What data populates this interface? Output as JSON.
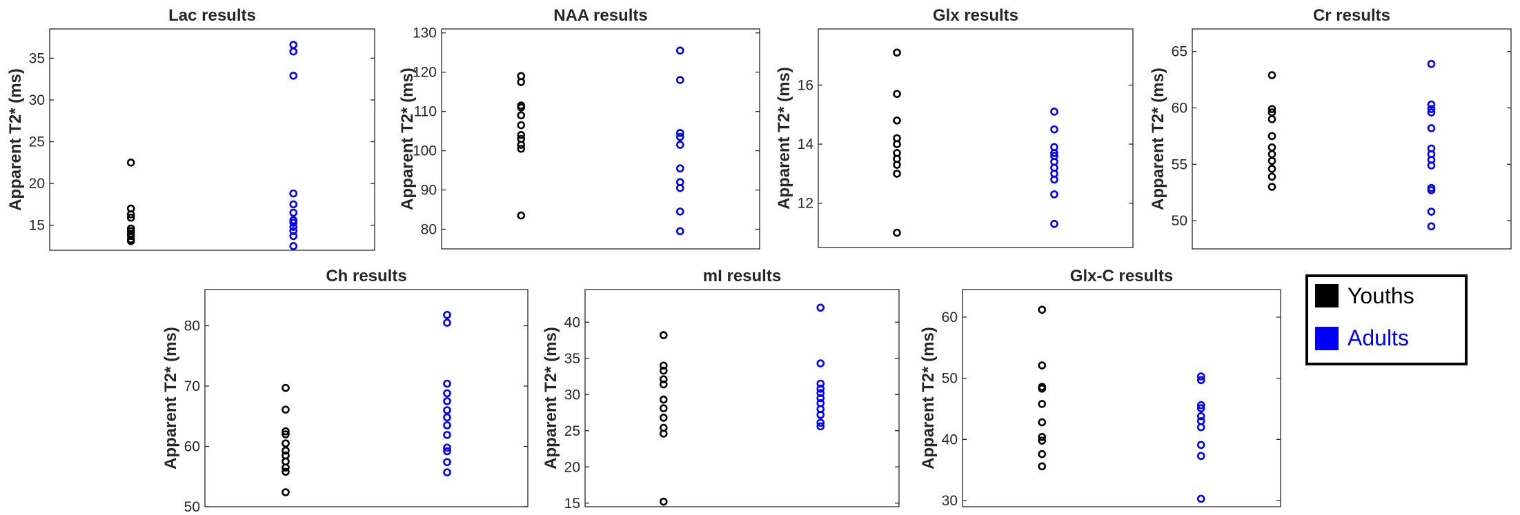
{
  "legend": {
    "entries": [
      {
        "label": "Youths",
        "color": "#000000"
      },
      {
        "label": "Adults",
        "color": "#0000ff"
      }
    ]
  },
  "chart_data": [
    {
      "type": "scatter",
      "title": "Lac results",
      "ylabel": "Apparent T2* (ms)",
      "ylim": [
        12,
        38.5
      ],
      "yticks": [
        15,
        20,
        25,
        30,
        35
      ],
      "series": [
        {
          "name": "Youths",
          "color": "#000000",
          "x": 1,
          "values": [
            22.5,
            17.0,
            16.3,
            15.9,
            14.6,
            14.3,
            14.0,
            13.7,
            13.3,
            13.1
          ]
        },
        {
          "name": "Adults",
          "color": "#0000ff",
          "x": 2,
          "values": [
            36.6,
            35.8,
            32.9,
            18.8,
            17.5,
            16.5,
            15.6,
            15.3,
            14.8,
            14.3,
            13.7,
            12.5
          ]
        }
      ]
    },
    {
      "type": "scatter",
      "title": "NAA results",
      "ylabel": "Apparent T2* (ms)",
      "ylim": [
        75,
        131
      ],
      "yticks": [
        80,
        90,
        100,
        110,
        120,
        130
      ],
      "series": [
        {
          "name": "Youths",
          "color": "#000000",
          "x": 1,
          "values": [
            119,
            117.5,
            111.5,
            111,
            109,
            106.5,
            104,
            103,
            101.5,
            100.5,
            83.5
          ]
        },
        {
          "name": "Adults",
          "color": "#0000ff",
          "x": 2,
          "values": [
            125.5,
            118,
            104.5,
            103.5,
            101.5,
            95.5,
            92,
            90.5,
            84.5,
            79.5
          ]
        }
      ]
    },
    {
      "type": "scatter",
      "title": "Glx results",
      "ylabel": "Apparent T2* (ms)",
      "ylim": [
        10.5,
        17.9
      ],
      "yticks": [
        12,
        14,
        16
      ],
      "series": [
        {
          "name": "Youths",
          "color": "#000000",
          "x": 1,
          "values": [
            17.1,
            15.7,
            14.8,
            14.2,
            14.0,
            13.7,
            13.5,
            13.3,
            13.0,
            11.0
          ]
        },
        {
          "name": "Adults",
          "color": "#0000ff",
          "x": 2,
          "values": [
            15.1,
            14.5,
            13.9,
            13.7,
            13.6,
            13.4,
            13.2,
            13.0,
            12.8,
            12.3,
            11.3
          ]
        }
      ]
    },
    {
      "type": "scatter",
      "title": "Cr results",
      "ylabel": "Apparent T2* (ms)",
      "ylim": [
        47.5,
        67
      ],
      "yticks": [
        50,
        55,
        60,
        65
      ],
      "series": [
        {
          "name": "Youths",
          "color": "#000000",
          "x": 1,
          "values": [
            62.9,
            59.9,
            59.6,
            59.0,
            57.5,
            56.5,
            55.9,
            55.3,
            54.6,
            53.9,
            53.0
          ]
        },
        {
          "name": "Adults",
          "color": "#0000ff",
          "x": 2,
          "values": [
            63.9,
            60.3,
            59.9,
            59.6,
            58.2,
            56.4,
            55.9,
            55.4,
            54.9,
            52.9,
            52.7,
            50.8,
            49.5
          ]
        }
      ]
    },
    {
      "type": "scatter",
      "title": "Ch results",
      "ylabel": "Apparent T2* (ms)",
      "ylim": [
        50,
        86
      ],
      "yticks": [
        50,
        60,
        70,
        80
      ],
      "series": [
        {
          "name": "Youths",
          "color": "#000000",
          "x": 1,
          "values": [
            69.7,
            66.1,
            62.5,
            62.0,
            60.5,
            59.3,
            58.5,
            57.5,
            56.5,
            55.8,
            52.4
          ]
        },
        {
          "name": "Adults",
          "color": "#0000ff",
          "x": 2,
          "values": [
            81.8,
            80.5,
            70.4,
            68.8,
            67.5,
            66.0,
            64.8,
            63.5,
            61.9,
            59.8,
            59.2,
            57.4,
            55.7
          ]
        }
      ]
    },
    {
      "type": "scatter",
      "title": "mI results",
      "ylabel": "Apparent T2* (ms)",
      "ylim": [
        14.5,
        44.5
      ],
      "yticks": [
        15,
        20,
        25,
        30,
        35,
        40
      ],
      "series": [
        {
          "name": "Youths",
          "color": "#000000",
          "x": 1,
          "values": [
            38.2,
            34.0,
            33.3,
            32.1,
            31.4,
            29.3,
            28.1,
            26.8,
            25.4,
            24.6,
            15.2
          ]
        },
        {
          "name": "Adults",
          "color": "#0000ff",
          "x": 2,
          "values": [
            42.0,
            34.3,
            31.5,
            30.8,
            30.2,
            29.5,
            28.8,
            28.0,
            27.2,
            26.1,
            25.6
          ]
        }
      ]
    },
    {
      "type": "scatter",
      "title": "Glx-C results",
      "ylabel": "Apparent T2* (ms)",
      "ylim": [
        29,
        64.5
      ],
      "yticks": [
        30,
        40,
        50,
        60
      ],
      "series": [
        {
          "name": "Youths",
          "color": "#000000",
          "x": 1,
          "values": [
            61.2,
            52.1,
            48.6,
            48.3,
            45.8,
            42.8,
            40.4,
            39.8,
            37.6,
            35.6
          ]
        },
        {
          "name": "Adults",
          "color": "#0000ff",
          "x": 2,
          "values": [
            50.3,
            49.7,
            45.6,
            45.1,
            43.8,
            43.0,
            42.0,
            39.1,
            37.3,
            30.3
          ]
        }
      ]
    }
  ]
}
